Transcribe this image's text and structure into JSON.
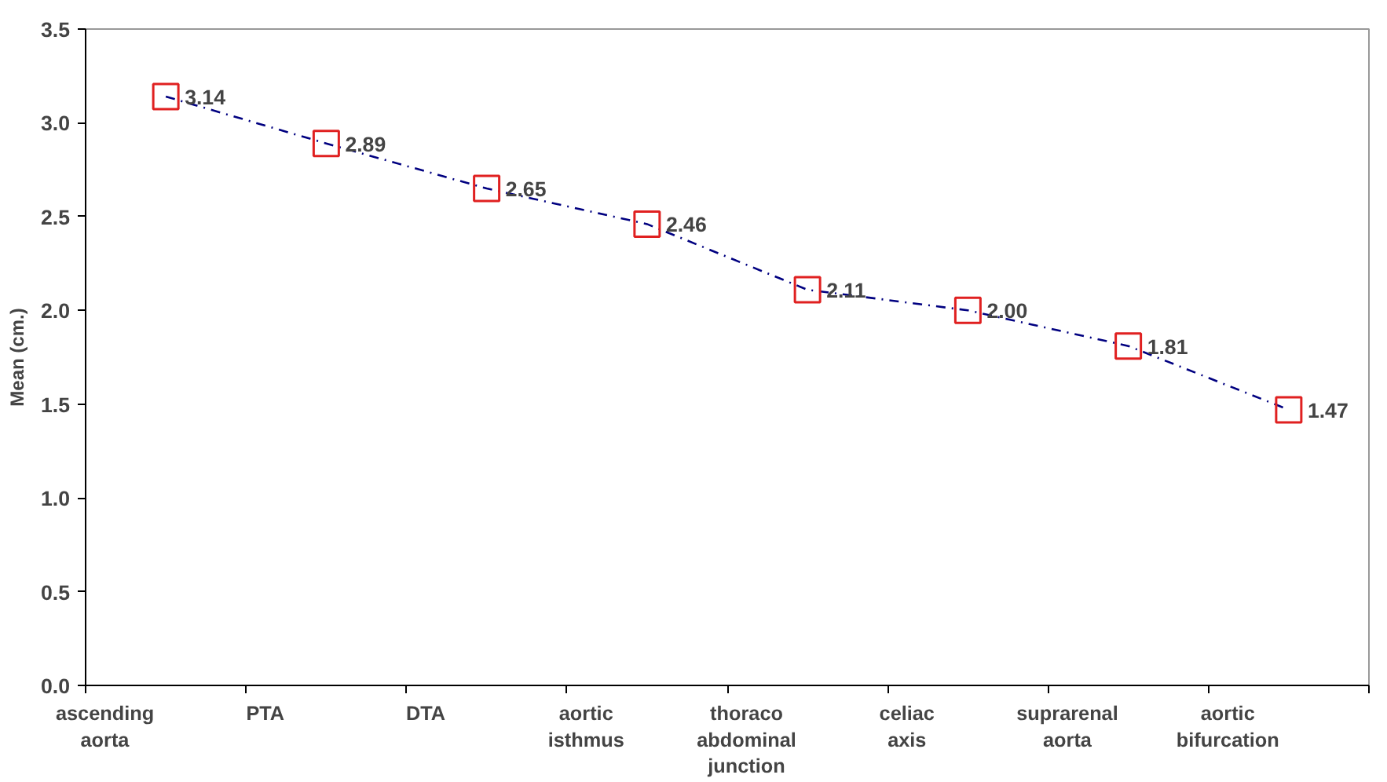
{
  "chart_data": {
    "type": "line",
    "ylabel": "Mean (cm.)",
    "categories": [
      "ascending aorta",
      "PTA",
      "DTA",
      "aortic isthmus",
      "thoraco abdominal junction",
      "celiac axis",
      "suprarenal aorta",
      "aortic bifurcation"
    ],
    "series": [
      {
        "color": "#000080",
        "values": [
          3.14,
          2.89,
          2.65,
          2.46,
          2.11,
          2.0,
          1.81,
          1.47
        ]
      }
    ],
    "value_labels": [
      "3.14",
      "2.89",
      "2.65",
      "2.46",
      "2.11",
      "2.00",
      "1.81",
      "1.47"
    ],
    "ylim": [
      0,
      3.5
    ],
    "yticks": [
      {
        "value": 0,
        "label": "0.0"
      },
      {
        "value": 0.5,
        "label": "0.5"
      },
      {
        "value": 1,
        "label": "1.0"
      },
      {
        "value": 1.5,
        "label": "1.5"
      },
      {
        "value": 2,
        "label": "2.0"
      },
      {
        "value": 2.5,
        "label": "2.5"
      },
      {
        "value": 3,
        "label": "3.0"
      },
      {
        "value": 3.5,
        "label": "3.5"
      }
    ],
    "grid": false,
    "marker": "square",
    "line_style": "dashed"
  }
}
